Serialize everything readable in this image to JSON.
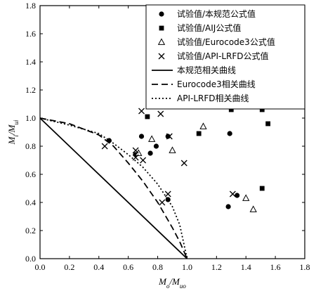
{
  "chart_data": {
    "type": "scatter",
    "xlabel": "Mo/Muo",
    "ylabel": "Mi/Mui",
    "xlim": [
      0,
      1.8
    ],
    "ylim": [
      0,
      1.8
    ],
    "xticks": [
      "0.0",
      "0.2",
      "0.4",
      "0.6",
      "0.8",
      "1.0",
      "1.2",
      "1.4",
      "1.6",
      "1.8"
    ],
    "yticks": [
      "0.0",
      "0.2",
      "0.4",
      "0.6",
      "0.8",
      "1.0",
      "1.2",
      "1.4",
      "1.6",
      "1.8"
    ],
    "grid": false,
    "legend_position": "top-right",
    "series": [
      {
        "name": "试验值/本规范公式值",
        "marker": "circle",
        "points": [
          [
            0.47,
            0.84
          ],
          [
            0.69,
            0.87
          ],
          [
            0.79,
            0.8
          ],
          [
            0.87,
            0.87
          ],
          [
            0.87,
            0.42
          ],
          [
            1.1,
            1.09
          ],
          [
            1.29,
            0.89
          ],
          [
            1.28,
            0.37
          ],
          [
            1.34,
            0.45
          ],
          [
            0.65,
            0.74
          ],
          [
            0.75,
            0.75
          ]
        ]
      },
      {
        "name": "试验值/AIJ公式值",
        "marker": "square",
        "points": [
          [
            0.73,
            1.01
          ],
          [
            1.08,
            0.89
          ],
          [
            1.3,
            1.06
          ],
          [
            1.51,
            1.06
          ],
          [
            1.55,
            0.96
          ],
          [
            1.67,
            1.08
          ],
          [
            1.51,
            0.5
          ]
        ]
      },
      {
        "name": "试验值/Eurocode3公式值",
        "marker": "triangle",
        "points": [
          [
            0.67,
            0.75
          ],
          [
            0.76,
            0.85
          ],
          [
            0.9,
            0.77
          ],
          [
            1.11,
            0.94
          ],
          [
            1.4,
            0.43
          ],
          [
            1.45,
            0.35
          ]
        ]
      },
      {
        "name": "试验值/API-LRFD公式值",
        "marker": "cross",
        "points": [
          [
            0.69,
            1.05
          ],
          [
            0.82,
            1.03
          ],
          [
            0.88,
            0.87
          ],
          [
            0.98,
            0.68
          ],
          [
            0.65,
            0.77
          ],
          [
            0.7,
            0.7
          ],
          [
            0.44,
            0.8
          ],
          [
            0.65,
            0.72
          ],
          [
            0.83,
            0.4
          ],
          [
            0.87,
            0.46
          ],
          [
            1.31,
            0.46
          ]
        ]
      },
      {
        "name": "本规范相关曲线",
        "line": "solid",
        "points": [
          [
            0,
            1
          ],
          [
            1,
            0
          ]
        ]
      },
      {
        "name": "Eurocode3相关曲线",
        "line": "dashed",
        "points": [
          [
            0,
            1
          ],
          [
            0.2,
            0.96
          ],
          [
            0.4,
            0.88
          ],
          [
            0.5,
            0.8
          ],
          [
            0.6,
            0.68
          ],
          [
            0.7,
            0.55
          ],
          [
            0.8,
            0.4
          ],
          [
            0.9,
            0.22
          ],
          [
            0.95,
            0.12
          ],
          [
            1.0,
            0
          ]
        ]
      },
      {
        "name": "API-LRFD相关曲线",
        "line": "dotted",
        "points": [
          [
            0,
            1
          ],
          [
            0.2,
            0.95
          ],
          [
            0.4,
            0.89
          ],
          [
            0.5,
            0.82
          ],
          [
            0.6,
            0.74
          ],
          [
            0.7,
            0.65
          ],
          [
            0.8,
            0.53
          ],
          [
            0.9,
            0.37
          ],
          [
            0.95,
            0.24
          ],
          [
            1.0,
            0
          ]
        ]
      }
    ]
  }
}
